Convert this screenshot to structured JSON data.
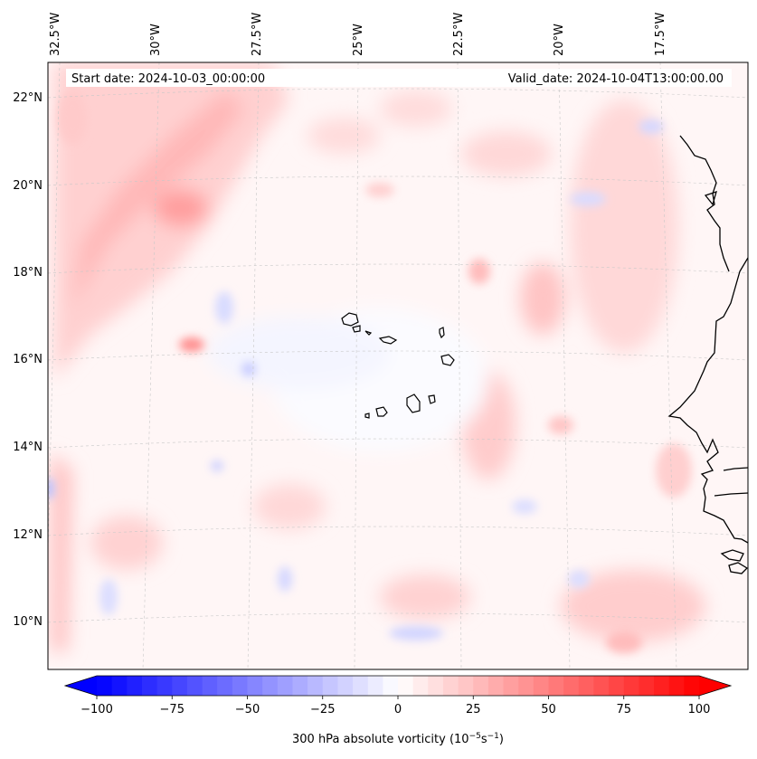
{
  "figure": {
    "start_date": "Start date: 2024-10-03_00:00:00",
    "valid_date": "Valid_date: 2024-10-04T13:00:00.00"
  },
  "map": {
    "lon_labels": [
      "32.5°W",
      "30°W",
      "27.5°W",
      "25°W",
      "22.5°W",
      "20°W",
      "17.5°W"
    ],
    "lat_labels": [
      "22°N",
      "20°N",
      "18°N",
      "16°N",
      "14°N",
      "12°N",
      "10°N"
    ],
    "coastline_color": "#000000",
    "grid_color": "#bdbdbd"
  },
  "colorbar": {
    "label_prefix": "300 hPa absolute vorticity (10",
    "label_exp1": "−5",
    "label_mid": "s",
    "label_exp2": "−1",
    "label_suffix": ")",
    "ticks": [
      "−100",
      "−75",
      "−50",
      "−25",
      "0",
      "25",
      "50",
      "75",
      "100"
    ],
    "min": -100,
    "max": 100,
    "color_low": "#0000ff",
    "color_mid": "#ffffff",
    "color_high": "#ff0000"
  }
}
